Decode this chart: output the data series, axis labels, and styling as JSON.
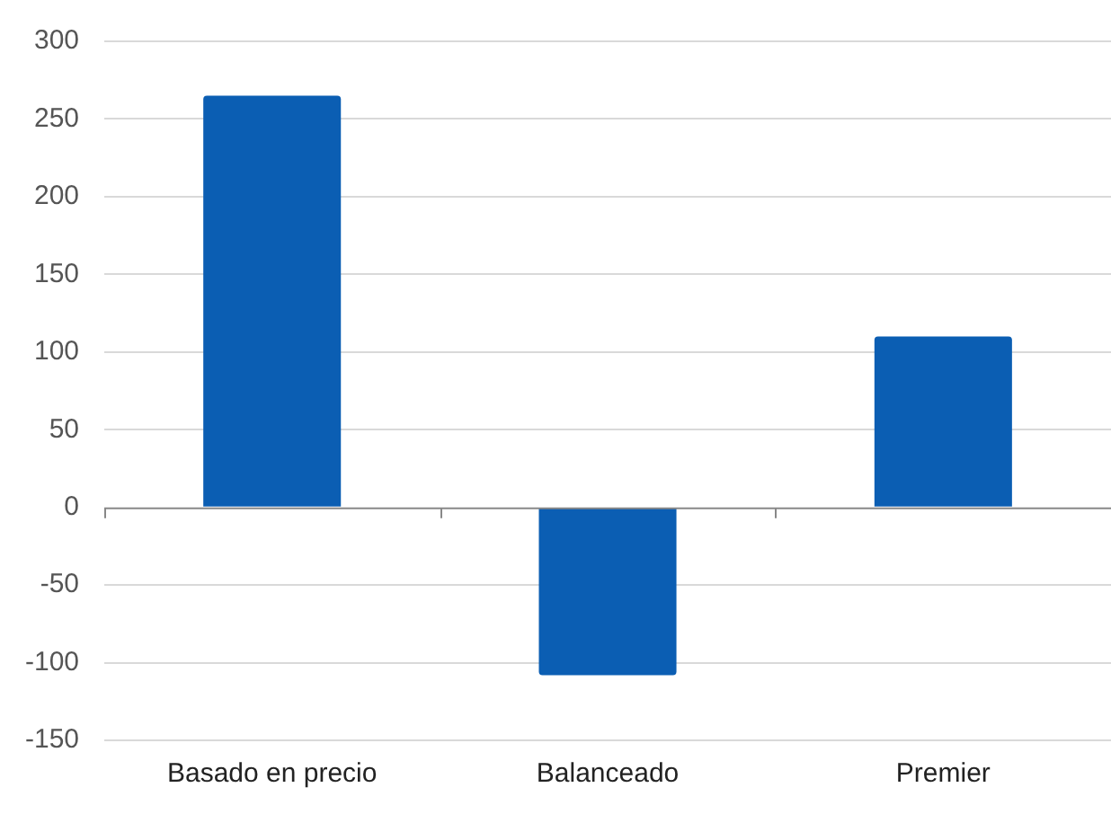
{
  "chart_data": {
    "type": "bar",
    "categories": [
      "Basado en precio",
      "Balanceado",
      "Premier"
    ],
    "values": [
      265,
      -108,
      110
    ],
    "color": "#0b5eb3",
    "ylim": [
      -150,
      300
    ],
    "yticks": [
      -150,
      -100,
      -50,
      0,
      50,
      100,
      150,
      200,
      250,
      300
    ],
    "grid": "y"
  }
}
